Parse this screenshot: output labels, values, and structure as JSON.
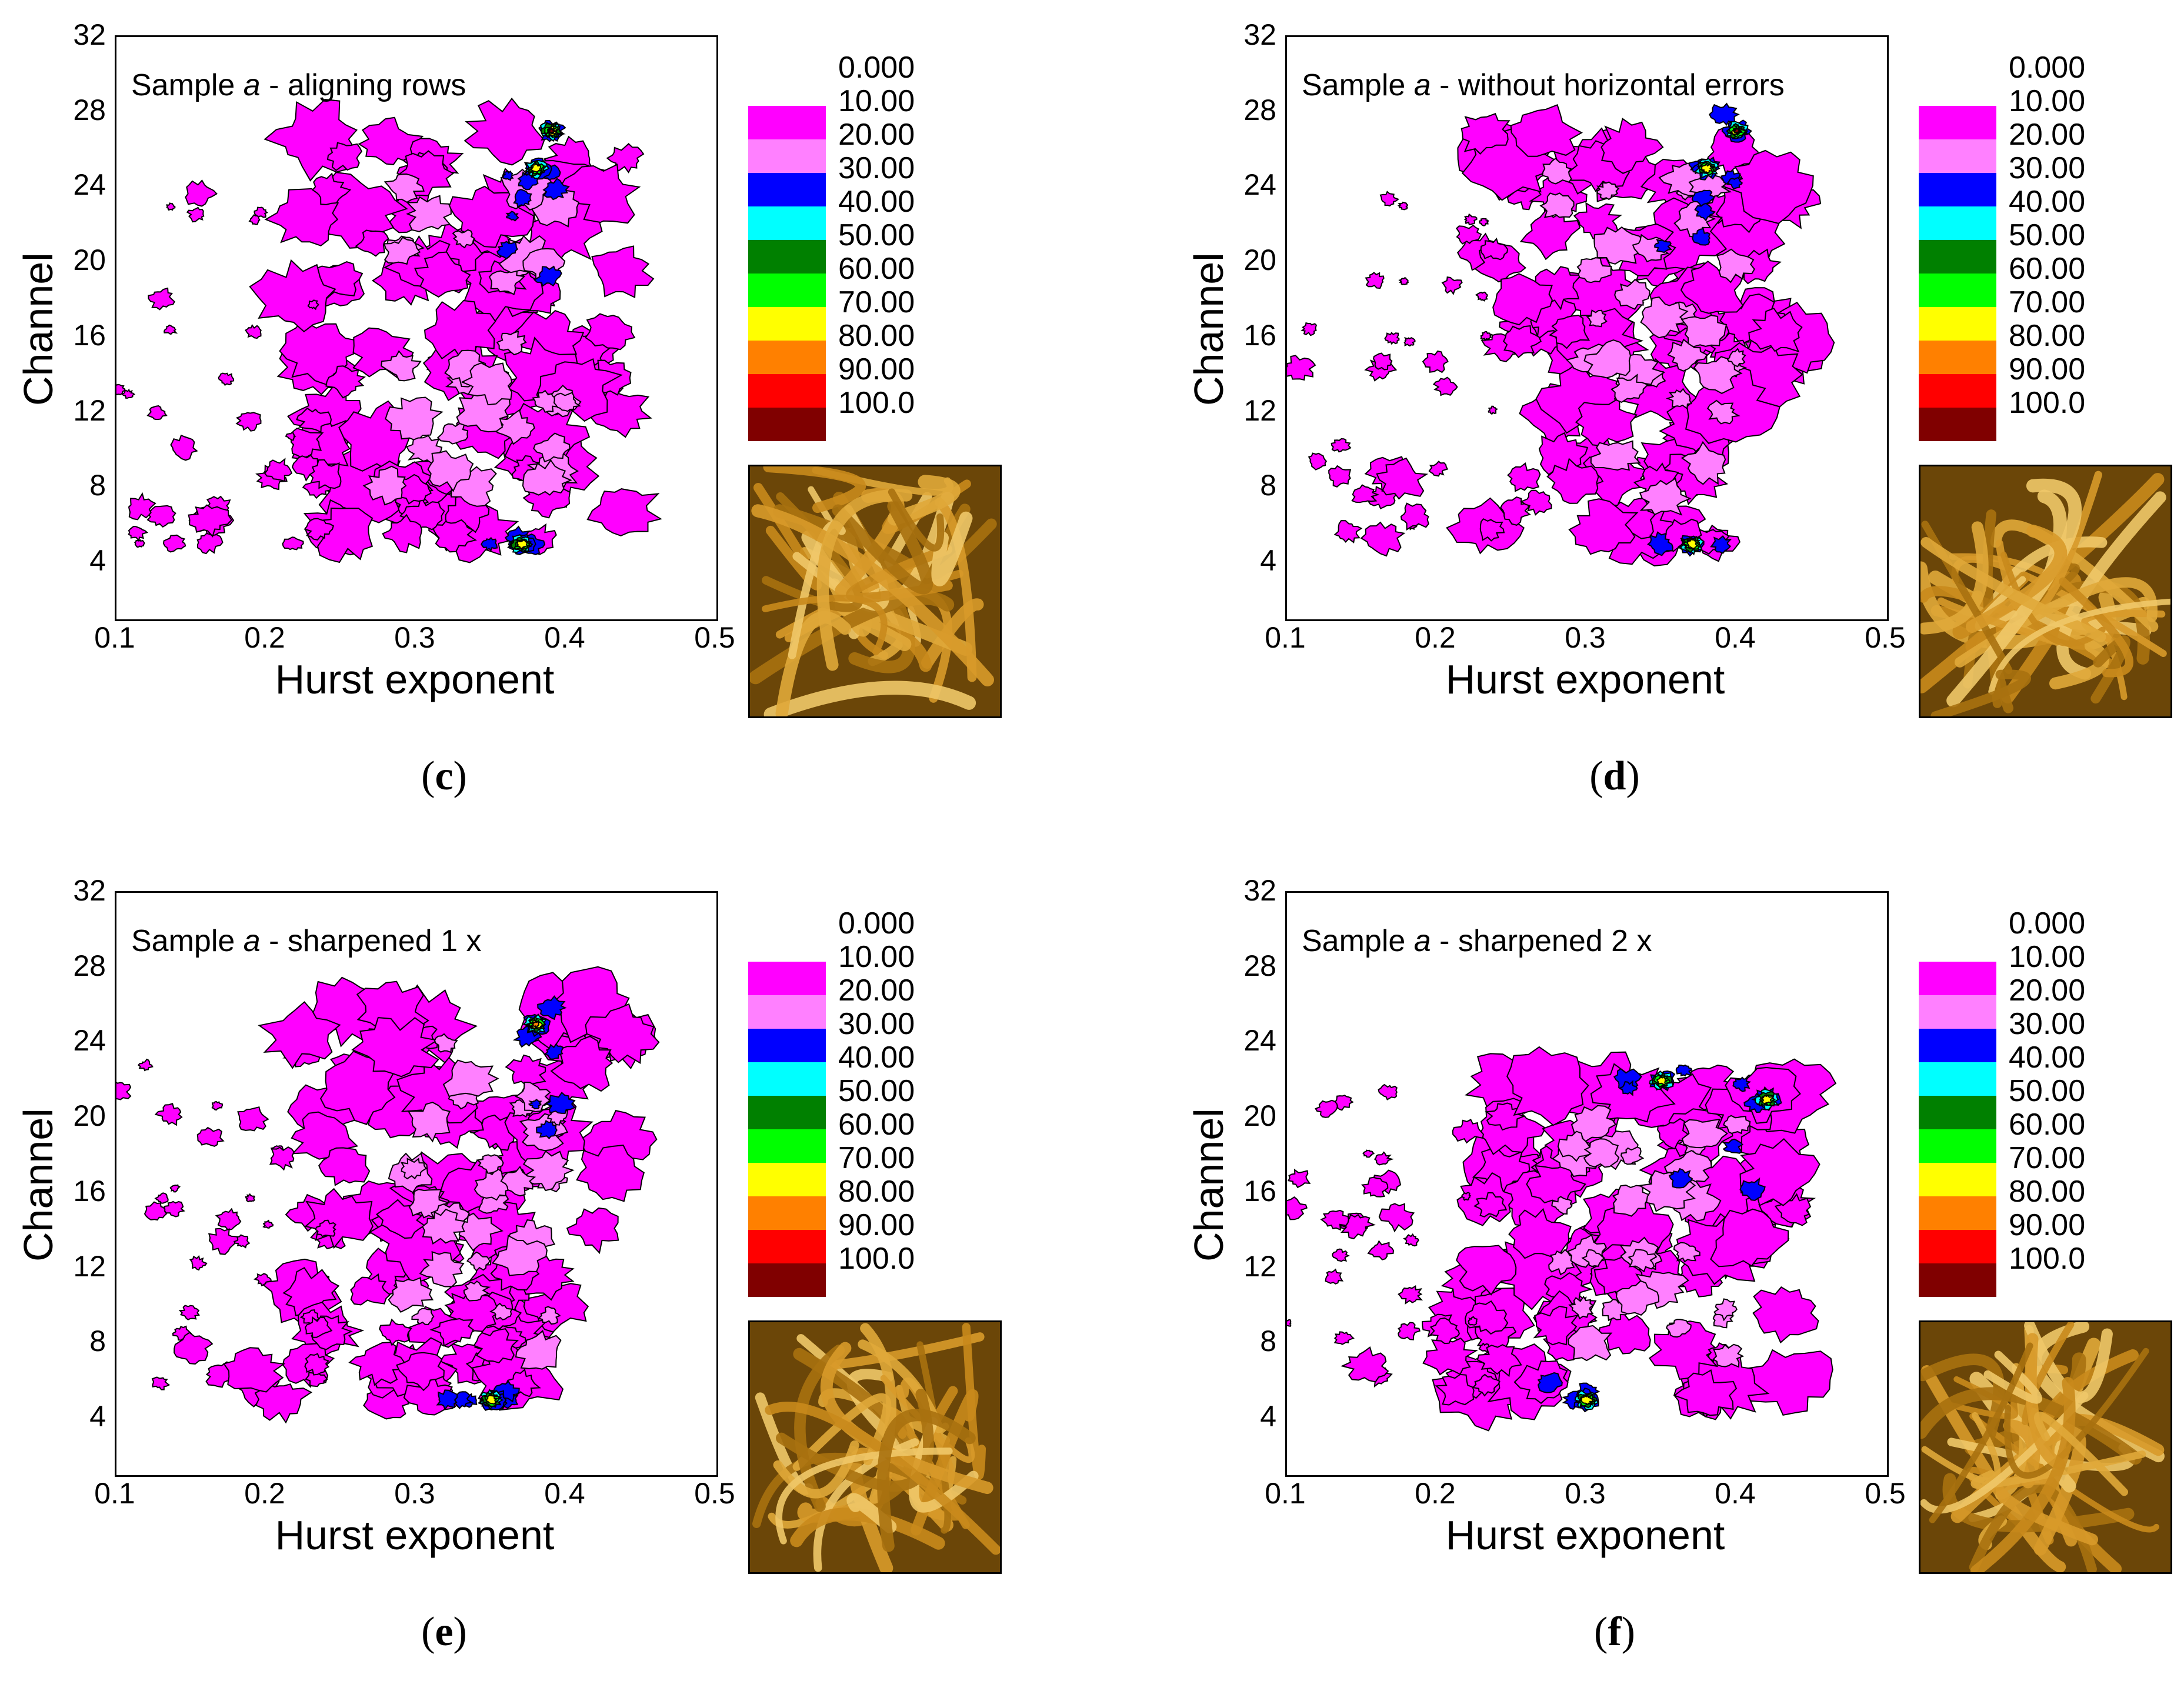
{
  "chart_data": [
    {
      "type": "contour",
      "panel": "c",
      "title_prefix": "Sample ",
      "title_italic": "a",
      "title_suffix": " - aligning rows",
      "xlabel": "Hurst exponent",
      "ylabel": "Channel",
      "xlim": [
        0.1,
        0.5
      ],
      "ylim": [
        1,
        32
      ],
      "xticks": [
        "0.1",
        "0.2",
        "0.3",
        "0.4",
        "0.5"
      ],
      "yticks": [
        "4",
        "8",
        "12",
        "16",
        "20",
        "24",
        "28",
        "32"
      ],
      "legend": [
        "0.000",
        "10.00",
        "20.00",
        "30.00",
        "40.00",
        "50.00",
        "60.00",
        "70.00",
        "80.00",
        "90.00",
        "100.0"
      ],
      "peaks": [
        {
          "x": 0.39,
          "y": 27,
          "level": 100
        },
        {
          "x": 0.38,
          "y": 25,
          "level": 60
        },
        {
          "x": 0.37,
          "y": 5,
          "level": 60
        }
      ],
      "sublabel": "c"
    },
    {
      "type": "contour",
      "panel": "d",
      "title_prefix": "Sample ",
      "title_italic": "a",
      "title_suffix": " - without horizontal errors",
      "xlabel": "Hurst exponent",
      "ylabel": "Channel",
      "xlim": [
        0.1,
        0.5
      ],
      "ylim": [
        1,
        32
      ],
      "xticks": [
        "0.1",
        "0.2",
        "0.3",
        "0.4",
        "0.5"
      ],
      "yticks": [
        "4",
        "8",
        "12",
        "16",
        "20",
        "24",
        "28",
        "32"
      ],
      "legend": [
        "0.000",
        "10.00",
        "20.00",
        "30.00",
        "40.00",
        "50.00",
        "60.00",
        "70.00",
        "80.00",
        "90.00",
        "100.0"
      ],
      "peaks": [
        {
          "x": 0.4,
          "y": 27,
          "level": 100
        },
        {
          "x": 0.38,
          "y": 25,
          "level": 60
        },
        {
          "x": 0.37,
          "y": 5,
          "level": 60
        }
      ],
      "sublabel": "d"
    },
    {
      "type": "contour",
      "panel": "e",
      "title_prefix": "Sample ",
      "title_italic": "a",
      "title_suffix": " - sharpened 1 x",
      "xlabel": "Hurst exponent",
      "ylabel": "Channel",
      "xlim": [
        0.1,
        0.5
      ],
      "ylim": [
        1,
        32
      ],
      "xticks": [
        "0.1",
        "0.2",
        "0.3",
        "0.4",
        "0.5"
      ],
      "yticks": [
        "4",
        "8",
        "12",
        "16",
        "20",
        "24",
        "28",
        "32"
      ],
      "legend": [
        "0.000",
        "10.00",
        "20.00",
        "30.00",
        "40.00",
        "50.00",
        "60.00",
        "70.00",
        "80.00",
        "90.00",
        "100.0"
      ],
      "peaks": [
        {
          "x": 0.38,
          "y": 25,
          "level": 70
        },
        {
          "x": 0.35,
          "y": 5,
          "level": 60
        }
      ],
      "sublabel": "e"
    },
    {
      "type": "contour",
      "panel": "f",
      "title_prefix": "Sample ",
      "title_italic": "a",
      "title_suffix": " - sharpened 2 x",
      "xlabel": "Hurst exponent",
      "ylabel": "Channel",
      "xlim": [
        0.1,
        0.5
      ],
      "ylim": [
        1,
        32
      ],
      "xticks": [
        "0.1",
        "0.2",
        "0.3",
        "0.4",
        "0.5"
      ],
      "yticks": [
        "4",
        "8",
        "12",
        "16",
        "20",
        "24",
        "28",
        "32"
      ],
      "legend": [
        "0.000",
        "10.00",
        "20.00",
        "30.00",
        "40.00",
        "50.00",
        "60.00",
        "70.00",
        "80.00",
        "90.00",
        "100.0"
      ],
      "peaks": [
        {
          "x": 0.35,
          "y": 22,
          "level": 60
        },
        {
          "x": 0.42,
          "y": 21,
          "level": 60
        },
        {
          "x": 0.3,
          "y": 5,
          "level": 60
        }
      ],
      "sublabel": "f"
    }
  ],
  "legend_colors": [
    "#ff00ff",
    "#ff80ff",
    "#0000ff",
    "#00ffff",
    "#008000",
    "#00ff00",
    "#ffff00",
    "#ff8000",
    "#ff0000",
    "#800000"
  ]
}
